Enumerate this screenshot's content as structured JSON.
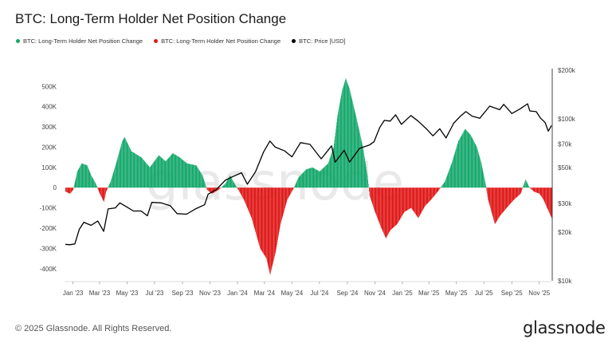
{
  "title": "BTC: Long-Term Holder Net Position Change",
  "legend": [
    {
      "label": "BTC: Long-Term Holder Net Position Change",
      "color": "#14a86b"
    },
    {
      "label": "BTC: Long-Term Holder Net Position Change",
      "color": "#e01717"
    },
    {
      "label": "BTC: Price [USD]",
      "color": "#000000"
    }
  ],
  "footer": "© 2025 Glassnode. All Rights Reserved.",
  "logo": "glassnode",
  "watermark": "glassnode",
  "chart_data": {
    "type": "area",
    "x_ticks": [
      "Jan '23",
      "Mar '23",
      "May '23",
      "Jul '23",
      "Sep '23",
      "Nov '23",
      "Jan '24",
      "Mar '24",
      "May '24",
      "Jul '24",
      "Sep '24",
      "Nov '24",
      "Jan '25",
      "Mar '25",
      "May '25",
      "Jul '25",
      "Sep '25",
      "Nov '25"
    ],
    "y_left_ticks": [
      {
        "v": 500000,
        "t": "500K"
      },
      {
        "v": 400000,
        "t": "400K"
      },
      {
        "v": 300000,
        "t": "300K"
      },
      {
        "v": 200000,
        "t": "200K"
      },
      {
        "v": 100000,
        "t": "100K"
      },
      {
        "v": 0,
        "t": "0"
      },
      {
        "v": -100000,
        "t": "-100K"
      },
      {
        "v": -200000,
        "t": "-200K"
      },
      {
        "v": -300000,
        "t": "-300K"
      },
      {
        "v": -400000,
        "t": "-400K"
      }
    ],
    "y_right_ticks": [
      {
        "v": 200000,
        "t": "$200k"
      },
      {
        "v": 100000,
        "t": "$100k"
      },
      {
        "v": 70000,
        "t": "$70k"
      },
      {
        "v": 50000,
        "t": "$50k"
      },
      {
        "v": 30000,
        "t": "$30k"
      },
      {
        "v": 20000,
        "t": "$20k"
      },
      {
        "v": 10000,
        "t": "$10k"
      }
    ],
    "y_left_range": [
      -460000,
      580000
    ],
    "y_right_range_log": [
      10000,
      200000
    ],
    "x_range": [
      "2022-12-15",
      "2025-11-28"
    ],
    "right_scale": "log",
    "grid": false,
    "series": [
      {
        "name": "BTC: Long-Term Holder Net Position Change",
        "type": "area",
        "positive_color": "#14a86b",
        "negative_color": "#e01717",
        "points": [
          [
            "2022-12-15",
            -20000
          ],
          [
            "2022-12-25",
            -30000
          ],
          [
            "2023-01-01",
            -10000
          ],
          [
            "2023-01-10",
            80000
          ],
          [
            "2023-01-20",
            120000
          ],
          [
            "2023-02-01",
            110000
          ],
          [
            "2023-02-10",
            60000
          ],
          [
            "2023-02-20",
            20000
          ],
          [
            "2023-03-01",
            -30000
          ],
          [
            "2023-03-10",
            -70000
          ],
          [
            "2023-03-15",
            -20000
          ],
          [
            "2023-03-25",
            30000
          ],
          [
            "2023-04-05",
            110000
          ],
          [
            "2023-04-20",
            230000
          ],
          [
            "2023-04-25",
            250000
          ],
          [
            "2023-05-10",
            180000
          ],
          [
            "2023-06-01",
            150000
          ],
          [
            "2023-06-20",
            100000
          ],
          [
            "2023-07-10",
            160000
          ],
          [
            "2023-07-25",
            130000
          ],
          [
            "2023-08-10",
            170000
          ],
          [
            "2023-08-25",
            150000
          ],
          [
            "2023-09-10",
            120000
          ],
          [
            "2023-10-01",
            110000
          ],
          [
            "2023-10-15",
            60000
          ],
          [
            "2023-10-25",
            -10000
          ],
          [
            "2023-11-05",
            -30000
          ],
          [
            "2023-11-20",
            -10000
          ],
          [
            "2023-12-05",
            20000
          ],
          [
            "2023-12-15",
            60000
          ],
          [
            "2023-12-25",
            20000
          ],
          [
            "2024-01-05",
            -20000
          ],
          [
            "2024-01-15",
            -60000
          ],
          [
            "2024-02-01",
            -150000
          ],
          [
            "2024-02-20",
            -300000
          ],
          [
            "2024-03-05",
            -350000
          ],
          [
            "2024-03-13",
            -430000
          ],
          [
            "2024-03-25",
            -320000
          ],
          [
            "2024-04-05",
            -180000
          ],
          [
            "2024-04-20",
            -60000
          ],
          [
            "2024-05-05",
            0
          ],
          [
            "2024-05-15",
            50000
          ],
          [
            "2024-06-01",
            90000
          ],
          [
            "2024-06-15",
            100000
          ],
          [
            "2024-07-01",
            80000
          ],
          [
            "2024-07-20",
            120000
          ],
          [
            "2024-08-01",
            200000
          ],
          [
            "2024-08-10",
            360000
          ],
          [
            "2024-08-20",
            480000
          ],
          [
            "2024-08-28",
            540000
          ],
          [
            "2024-09-05",
            490000
          ],
          [
            "2024-09-20",
            350000
          ],
          [
            "2024-10-05",
            200000
          ],
          [
            "2024-10-15",
            60000
          ],
          [
            "2024-10-20",
            -40000
          ],
          [
            "2024-11-01",
            -120000
          ],
          [
            "2024-11-15",
            -200000
          ],
          [
            "2024-11-25",
            -250000
          ],
          [
            "2024-12-05",
            -210000
          ],
          [
            "2024-12-20",
            -180000
          ],
          [
            "2025-01-05",
            -120000
          ],
          [
            "2025-01-20",
            -100000
          ],
          [
            "2025-02-05",
            -150000
          ],
          [
            "2025-02-20",
            -90000
          ],
          [
            "2025-03-05",
            -60000
          ],
          [
            "2025-03-20",
            -20000
          ],
          [
            "2025-04-05",
            30000
          ],
          [
            "2025-04-20",
            120000
          ],
          [
            "2025-05-05",
            230000
          ],
          [
            "2025-05-20",
            290000
          ],
          [
            "2025-06-01",
            260000
          ],
          [
            "2025-06-15",
            200000
          ],
          [
            "2025-06-25",
            120000
          ],
          [
            "2025-07-05",
            10000
          ],
          [
            "2025-07-10",
            -60000
          ],
          [
            "2025-07-25",
            -180000
          ],
          [
            "2025-08-05",
            -140000
          ],
          [
            "2025-08-20",
            -100000
          ],
          [
            "2025-09-05",
            -60000
          ],
          [
            "2025-09-20",
            -30000
          ],
          [
            "2025-10-01",
            40000
          ],
          [
            "2025-10-10",
            0
          ],
          [
            "2025-10-20",
            -20000
          ],
          [
            "2025-11-01",
            -30000
          ],
          [
            "2025-11-10",
            -60000
          ],
          [
            "2025-11-20",
            -110000
          ],
          [
            "2025-11-28",
            -150000
          ]
        ]
      },
      {
        "name": "BTC: Price [USD]",
        "type": "line",
        "color": "#000000",
        "axis": "right",
        "points": [
          [
            "2022-12-15",
            16800
          ],
          [
            "2022-12-25",
            16700
          ],
          [
            "2023-01-05",
            16900
          ],
          [
            "2023-01-15",
            20800
          ],
          [
            "2023-01-25",
            23000
          ],
          [
            "2023-02-10",
            22000
          ],
          [
            "2023-02-25",
            23400
          ],
          [
            "2023-03-10",
            20200
          ],
          [
            "2023-03-20",
            27800
          ],
          [
            "2023-04-05",
            28200
          ],
          [
            "2023-04-15",
            30300
          ],
          [
            "2023-05-01",
            28500
          ],
          [
            "2023-05-15",
            27000
          ],
          [
            "2023-06-01",
            27000
          ],
          [
            "2023-06-15",
            25200
          ],
          [
            "2023-06-25",
            30500
          ],
          [
            "2023-07-15",
            30300
          ],
          [
            "2023-08-05",
            29100
          ],
          [
            "2023-08-20",
            26000
          ],
          [
            "2023-09-10",
            25800
          ],
          [
            "2023-10-01",
            27900
          ],
          [
            "2023-10-20",
            29500
          ],
          [
            "2023-10-28",
            34300
          ],
          [
            "2023-11-15",
            36600
          ],
          [
            "2023-12-05",
            41800
          ],
          [
            "2023-12-20",
            43800
          ],
          [
            "2024-01-10",
            46500
          ],
          [
            "2024-01-23",
            39500
          ],
          [
            "2024-02-10",
            47100
          ],
          [
            "2024-02-28",
            62400
          ],
          [
            "2024-03-13",
            73000
          ],
          [
            "2024-03-25",
            67000
          ],
          [
            "2024-04-15",
            63400
          ],
          [
            "2024-05-01",
            58300
          ],
          [
            "2024-05-20",
            71400
          ],
          [
            "2024-06-10",
            69600
          ],
          [
            "2024-07-05",
            56700
          ],
          [
            "2024-07-28",
            68200
          ],
          [
            "2024-08-05",
            54000
          ],
          [
            "2024-08-25",
            64000
          ],
          [
            "2024-09-06",
            54200
          ],
          [
            "2024-09-28",
            65800
          ],
          [
            "2024-10-20",
            69000
          ],
          [
            "2024-10-30",
            72300
          ],
          [
            "2024-11-12",
            88700
          ],
          [
            "2024-11-22",
            98000
          ],
          [
            "2024-12-05",
            97000
          ],
          [
            "2024-12-17",
            106000
          ],
          [
            "2024-12-30",
            92600
          ],
          [
            "2025-01-20",
            105000
          ],
          [
            "2025-02-05",
            97000
          ],
          [
            "2025-02-25",
            86000
          ],
          [
            "2025-03-10",
            78600
          ],
          [
            "2025-03-25",
            87000
          ],
          [
            "2025-04-08",
            76300
          ],
          [
            "2025-04-25",
            94000
          ],
          [
            "2025-05-10",
            104000
          ],
          [
            "2025-05-22",
            111000
          ],
          [
            "2025-06-05",
            104000
          ],
          [
            "2025-06-22",
            101000
          ],
          [
            "2025-07-14",
            120000
          ],
          [
            "2025-08-05",
            114000
          ],
          [
            "2025-08-14",
            123000
          ],
          [
            "2025-09-01",
            108000
          ],
          [
            "2025-09-20",
            115600
          ],
          [
            "2025-10-06",
            124000
          ],
          [
            "2025-10-11",
            112000
          ],
          [
            "2025-10-25",
            111000
          ],
          [
            "2025-11-04",
            101000
          ],
          [
            "2025-11-14",
            95000
          ],
          [
            "2025-11-21",
            84000
          ],
          [
            "2025-11-28",
            91000
          ]
        ]
      }
    ]
  }
}
